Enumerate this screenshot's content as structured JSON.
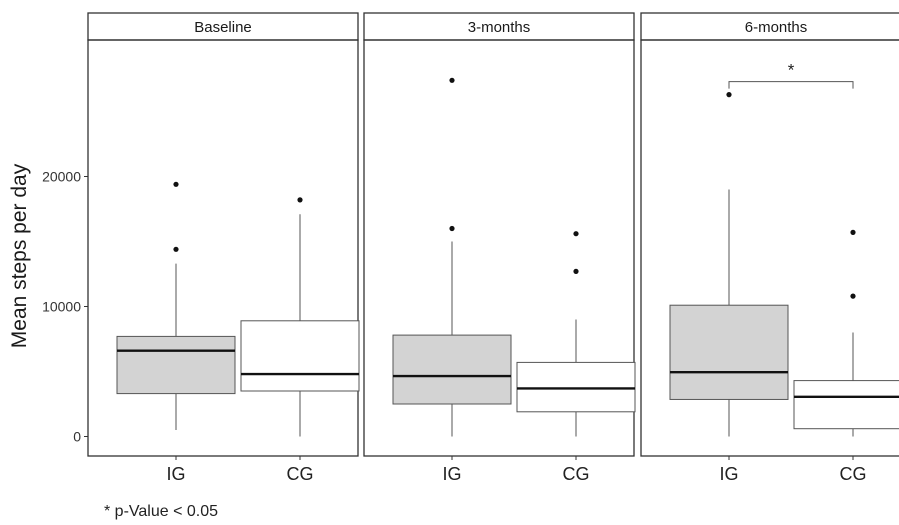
{
  "chart_data": {
    "type": "boxplot",
    "ylabel": "Mean steps per day",
    "xlabel": "",
    "ylim": [
      -1500,
      30500
    ],
    "yticks": [
      0,
      10000,
      20000
    ],
    "ytick_labels": [
      "0",
      "10000",
      "20000"
    ],
    "categories": [
      "IG",
      "CG"
    ],
    "grid": false,
    "colors": {
      "IG": "#d3d3d3",
      "CG": "#ffffff",
      "stroke": "#555555",
      "frame": "#333333"
    },
    "panels": [
      {
        "title": "Baseline",
        "boxes": [
          {
            "group": "IG",
            "whisker_low": 500,
            "q1": 3300,
            "median": 6600,
            "q3": 7700,
            "whisker_high": 13300,
            "outliers": [
              14400,
              19400
            ]
          },
          {
            "group": "CG",
            "whisker_low": 0,
            "q1": 3500,
            "median": 4800,
            "q3": 8900,
            "whisker_high": 17100,
            "outliers": [
              18200
            ]
          }
        ]
      },
      {
        "title": "3-months",
        "boxes": [
          {
            "group": "IG",
            "whisker_low": 0,
            "q1": 2500,
            "median": 4650,
            "q3": 7800,
            "whisker_high": 15000,
            "outliers": [
              16000,
              27400
            ]
          },
          {
            "group": "CG",
            "whisker_low": 0,
            "q1": 1900,
            "median": 3700,
            "q3": 5700,
            "whisker_high": 9000,
            "outliers": [
              12700,
              15600
            ]
          }
        ]
      },
      {
        "title": "6-months",
        "significance": {
          "label": "*",
          "y": 27300
        },
        "boxes": [
          {
            "group": "IG",
            "whisker_low": 0,
            "q1": 2850,
            "median": 4950,
            "q3": 10100,
            "whisker_high": 19000,
            "outliers": [
              26300
            ]
          },
          {
            "group": "CG",
            "whisker_low": 0,
            "q1": 600,
            "median": 3050,
            "q3": 4300,
            "whisker_high": 8000,
            "outliers": [
              10800,
              15700
            ]
          }
        ]
      }
    ]
  },
  "footnote": "* p-Value < 0.05"
}
